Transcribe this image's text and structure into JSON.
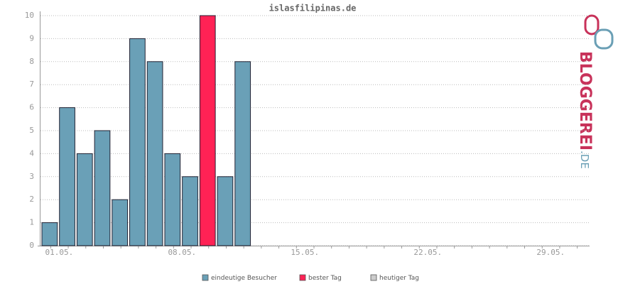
{
  "chart_data": {
    "type": "bar",
    "title": "islasfilipinas.de",
    "categories": [
      "01.05.",
      null,
      null,
      null,
      null,
      null,
      null,
      "08.05.",
      null,
      null,
      null,
      null,
      null,
      null,
      "15.05.",
      null,
      null,
      null,
      null,
      null,
      null,
      "22.05.",
      null,
      null,
      null,
      null,
      null,
      null,
      "29.05.",
      null,
      null
    ],
    "series": [
      {
        "name": "eindeutige Besucher",
        "color": "#6aa0b7",
        "values": [
          1,
          6,
          4,
          5,
          2,
          9,
          8,
          4,
          3,
          null,
          3,
          8,
          null,
          null,
          null,
          null,
          null,
          null,
          null,
          null,
          null,
          null,
          null,
          null,
          null,
          null,
          null,
          null,
          null,
          null,
          null
        ]
      },
      {
        "name": "bester Tag",
        "color": "#ff2255",
        "values": [
          null,
          null,
          null,
          null,
          null,
          null,
          null,
          null,
          null,
          10,
          null,
          null,
          null,
          null,
          null,
          null,
          null,
          null,
          null,
          null,
          null,
          null,
          null,
          null,
          null,
          null,
          null,
          null,
          null,
          null,
          null
        ]
      },
      {
        "name": "heutiger Tag",
        "color": "#cccccc",
        "values": [
          null,
          null,
          null,
          null,
          null,
          null,
          null,
          null,
          null,
          null,
          null,
          null,
          null,
          null,
          null,
          null,
          null,
          null,
          null,
          null,
          null,
          null,
          null,
          null,
          null,
          null,
          null,
          null,
          null,
          null,
          null
        ]
      }
    ],
    "ylim": [
      0,
      10
    ],
    "yticks": [
      0,
      1,
      2,
      3,
      4,
      5,
      6,
      7,
      8,
      9,
      10
    ],
    "grid": true,
    "logo": {
      "name": "BLOGGEREI",
      "suffix": ".DE"
    }
  }
}
